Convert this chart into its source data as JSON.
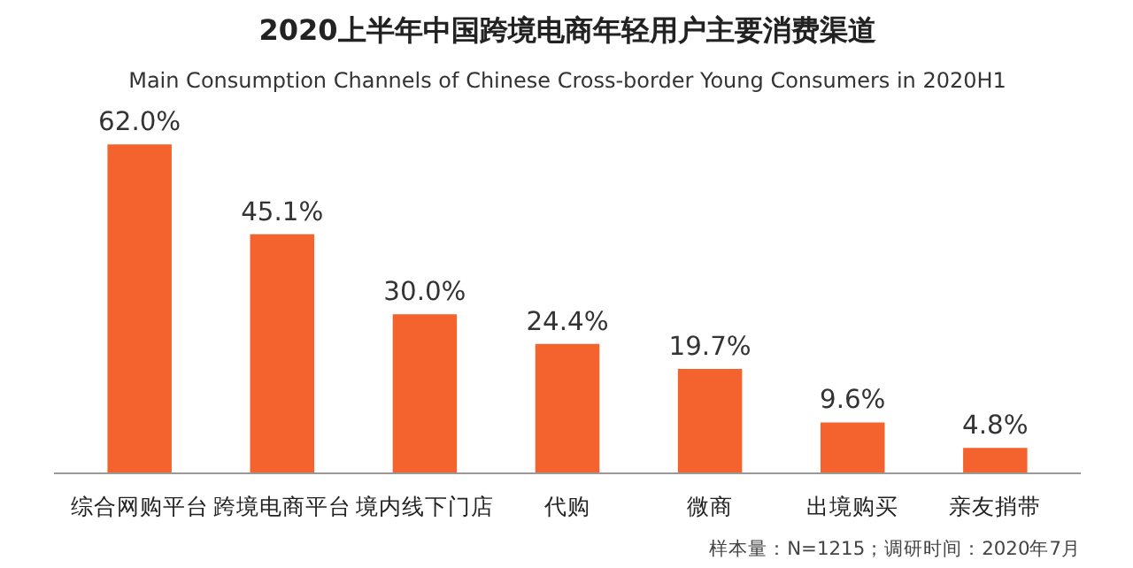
{
  "chart_data": {
    "type": "bar",
    "title": "2020上半年中国跨境电商年轻用户主要消费渠道",
    "subtitle": "Main Consumption Channels of Chinese Cross-border Young Consumers in 2020H1",
    "categories": [
      "综合网购平台",
      "跨境电商平台",
      "境内线下门店",
      "代购",
      "微商",
      "出境购买",
      "亲友捎带"
    ],
    "values": [
      62.0,
      45.1,
      30.0,
      24.4,
      19.7,
      9.6,
      4.8
    ],
    "value_labels": [
      "62.0%",
      "45.1%",
      "30.0%",
      "24.4%",
      "19.7%",
      "9.6%",
      "4.8%"
    ],
    "color": "#f4622e",
    "grid": false,
    "annotations": [
      "样本量：N=1215；调研时间：2020年7月"
    ]
  }
}
